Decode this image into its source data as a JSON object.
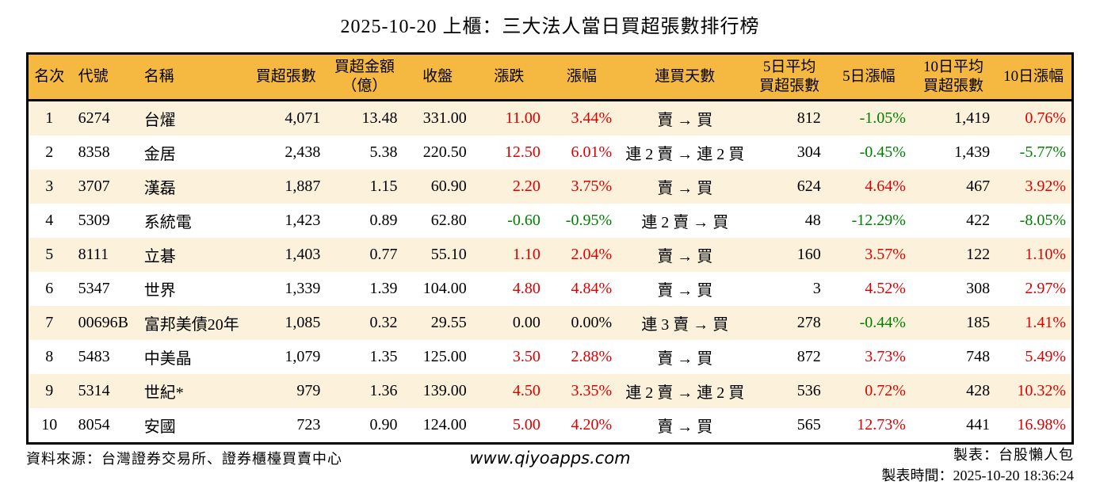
{
  "colors": {
    "header_bg": "#f5b942",
    "row_stripe_bg": "#fcf2dc",
    "up": "#dd0000",
    "down": "#008000",
    "neutral": "#000000"
  },
  "chart_data": {
    "type": "table",
    "title": "2025-10-20 上櫃：三大法人當日買超張數排行榜",
    "columns": [
      {
        "key": "rank",
        "label": "名次",
        "align": "center"
      },
      {
        "key": "code",
        "label": "代號",
        "align": "left"
      },
      {
        "key": "name",
        "label": "名稱",
        "align": "left"
      },
      {
        "key": "net_buy_lots",
        "label": "買超張數",
        "align": "right"
      },
      {
        "key": "net_buy_amount_100m",
        "label": "買超金額\n（億）",
        "align": "right"
      },
      {
        "key": "close",
        "label": "收盤",
        "align": "right"
      },
      {
        "key": "change",
        "label": "漲跌",
        "align": "right"
      },
      {
        "key": "change_pct",
        "label": "漲幅",
        "align": "right"
      },
      {
        "key": "streak",
        "label": "連買天數",
        "align": "center"
      },
      {
        "key": "avg5_net_buy",
        "label": "5日平均\n買超張數",
        "align": "right"
      },
      {
        "key": "pct5",
        "label": "5日漲幅",
        "align": "right"
      },
      {
        "key": "avg10_net_buy",
        "label": "10日平均\n買超張數",
        "align": "right"
      },
      {
        "key": "pct10",
        "label": "10日漲幅",
        "align": "right"
      }
    ],
    "rows": [
      [
        "1",
        "6274",
        "台燿",
        "4,071",
        "13.48",
        "331.00",
        {
          "v": "11.00",
          "c": "up"
        },
        {
          "v": "3.44%",
          "c": "up"
        },
        "賣 → 買",
        "812",
        {
          "v": "-1.05%",
          "c": "down"
        },
        "1,419",
        {
          "v": "0.76%",
          "c": "up"
        }
      ],
      [
        "2",
        "8358",
        "金居",
        "2,438",
        "5.38",
        "220.50",
        {
          "v": "12.50",
          "c": "up"
        },
        {
          "v": "6.01%",
          "c": "up"
        },
        "連 2 賣 → 連 2 買",
        "304",
        {
          "v": "-0.45%",
          "c": "down"
        },
        "1,439",
        {
          "v": "-5.77%",
          "c": "down"
        }
      ],
      [
        "3",
        "3707",
        "漢磊",
        "1,887",
        "1.15",
        "60.90",
        {
          "v": "2.20",
          "c": "up"
        },
        {
          "v": "3.75%",
          "c": "up"
        },
        "賣 → 買",
        "624",
        {
          "v": "4.64%",
          "c": "up"
        },
        "467",
        {
          "v": "3.92%",
          "c": "up"
        }
      ],
      [
        "4",
        "5309",
        "系統電",
        "1,423",
        "0.89",
        "62.80",
        {
          "v": "-0.60",
          "c": "down"
        },
        {
          "v": "-0.95%",
          "c": "down"
        },
        "連 2 賣 → 買",
        "48",
        {
          "v": "-12.29%",
          "c": "down"
        },
        "422",
        {
          "v": "-8.05%",
          "c": "down"
        }
      ],
      [
        "5",
        "8111",
        "立碁",
        "1,403",
        "0.77",
        "55.10",
        {
          "v": "1.10",
          "c": "up"
        },
        {
          "v": "2.04%",
          "c": "up"
        },
        "賣 → 買",
        "160",
        {
          "v": "3.57%",
          "c": "up"
        },
        "122",
        {
          "v": "1.10%",
          "c": "up"
        }
      ],
      [
        "6",
        "5347",
        "世界",
        "1,339",
        "1.39",
        "104.00",
        {
          "v": "4.80",
          "c": "up"
        },
        {
          "v": "4.84%",
          "c": "up"
        },
        "賣 → 買",
        "3",
        {
          "v": "4.52%",
          "c": "up"
        },
        "308",
        {
          "v": "2.97%",
          "c": "up"
        }
      ],
      [
        "7",
        "00696B",
        "富邦美債20年",
        "1,085",
        "0.32",
        "29.55",
        {
          "v": "0.00",
          "c": "flat"
        },
        {
          "v": "0.00%",
          "c": "flat"
        },
        "連 3 賣 → 買",
        "278",
        {
          "v": "-0.44%",
          "c": "down"
        },
        "185",
        {
          "v": "1.41%",
          "c": "up"
        }
      ],
      [
        "8",
        "5483",
        "中美晶",
        "1,079",
        "1.35",
        "125.00",
        {
          "v": "3.50",
          "c": "up"
        },
        {
          "v": "2.88%",
          "c": "up"
        },
        "賣 → 買",
        "872",
        {
          "v": "3.73%",
          "c": "up"
        },
        "748",
        {
          "v": "5.49%",
          "c": "up"
        }
      ],
      [
        "9",
        "5314",
        "世紀*",
        "979",
        "1.36",
        "139.00",
        {
          "v": "4.50",
          "c": "up"
        },
        {
          "v": "3.35%",
          "c": "up"
        },
        "連 2 賣 → 連 2 買",
        "536",
        {
          "v": "0.72%",
          "c": "up"
        },
        "428",
        {
          "v": "10.32%",
          "c": "up"
        }
      ],
      [
        "10",
        "8054",
        "安國",
        "723",
        "0.90",
        "124.00",
        {
          "v": "5.00",
          "c": "up"
        },
        {
          "v": "4.20%",
          "c": "up"
        },
        "賣 → 買",
        "565",
        {
          "v": "12.73%",
          "c": "up"
        },
        "441",
        {
          "v": "16.98%",
          "c": "up"
        }
      ]
    ]
  },
  "footer": {
    "source": "資料來源：台灣證券交易所、證券櫃檯買賣中心",
    "website": "www.qiyoapps.com",
    "maker": "製表：台股懶人包",
    "made_time": "製表時間：2025-10-20 18:36:24"
  }
}
